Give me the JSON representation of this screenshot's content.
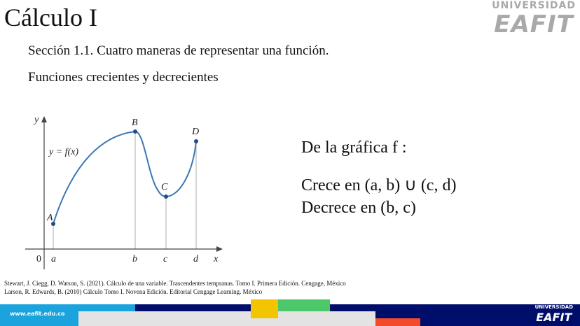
{
  "header": {
    "title": "Cálculo I",
    "subtitle": "Sección 1.1. Cuatro maneras de representar una función.",
    "section": "Funciones crecientes y decrecientes"
  },
  "logo": {
    "line1": "UNIVERSIDAD",
    "line2": "EAFIT"
  },
  "graph": {
    "y_axis": "y",
    "x_axis": "x",
    "origin": "0",
    "function_label": "y = f(x)",
    "points": [
      "A",
      "B",
      "C",
      "D"
    ],
    "ticks": [
      "a",
      "b",
      "c",
      "d"
    ],
    "curve_color": "#3a78b5"
  },
  "info": {
    "line1": "De la gráfica f :",
    "line2": "Crece en (a, b)  ∪ (c, d)",
    "line3": "Decrece en (b, c)"
  },
  "references": [
    "Stewart, J. Ciegg, D. Watson, S. (2021). Cálculo de una variable. Trascendentes tempranas. Tomo I. Primera Edición. Cengage, México",
    "Larson, R. Edwards, B. (2010) Cálculo Tomo I. Novena Edición. Editorial Cengage Learning. México"
  ],
  "footer": {
    "url": "www.eafit.edu.co",
    "colors": {
      "blue": "#1aa3dc",
      "navy": "#000e6b",
      "yellow": "#f2c500",
      "green": "#4cc86a",
      "gray": "#e3e3e3",
      "red": "#f24a2a"
    }
  }
}
